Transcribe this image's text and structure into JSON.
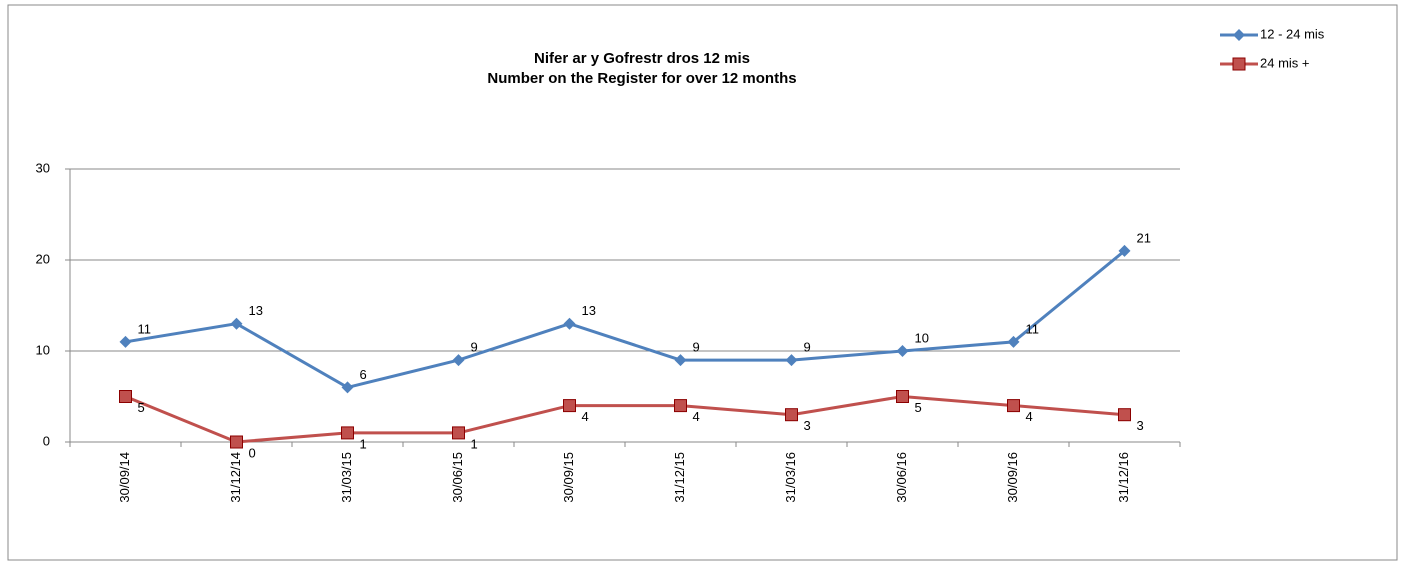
{
  "chart_data": {
    "type": "line",
    "title": "Nifer ar y Gofrestr  dros 12 mis",
    "subtitle": "Number on the Register for over 12 months",
    "categories": [
      "30/09/14",
      "31/12/14",
      "31/03/15",
      "30/06/15",
      "30/09/15",
      "31/12/15",
      "31/03/16",
      "30/06/16",
      "30/09/16",
      "31/12/16"
    ],
    "series": [
      {
        "name": "12 - 24 mis",
        "color": "#4f81bd",
        "marker": "diamond",
        "values": [
          11,
          13,
          6,
          9,
          13,
          9,
          9,
          10,
          11,
          21
        ]
      },
      {
        "name": "24 mis +",
        "color": "#c0504d",
        "marker": "square",
        "values": [
          5,
          0,
          1,
          1,
          4,
          4,
          3,
          5,
          4,
          3
        ]
      }
    ],
    "ylim": [
      0,
      30
    ],
    "yticks": [
      0,
      10,
      20,
      30
    ],
    "grid": true,
    "legend": "top-right",
    "data_labels": true
  }
}
